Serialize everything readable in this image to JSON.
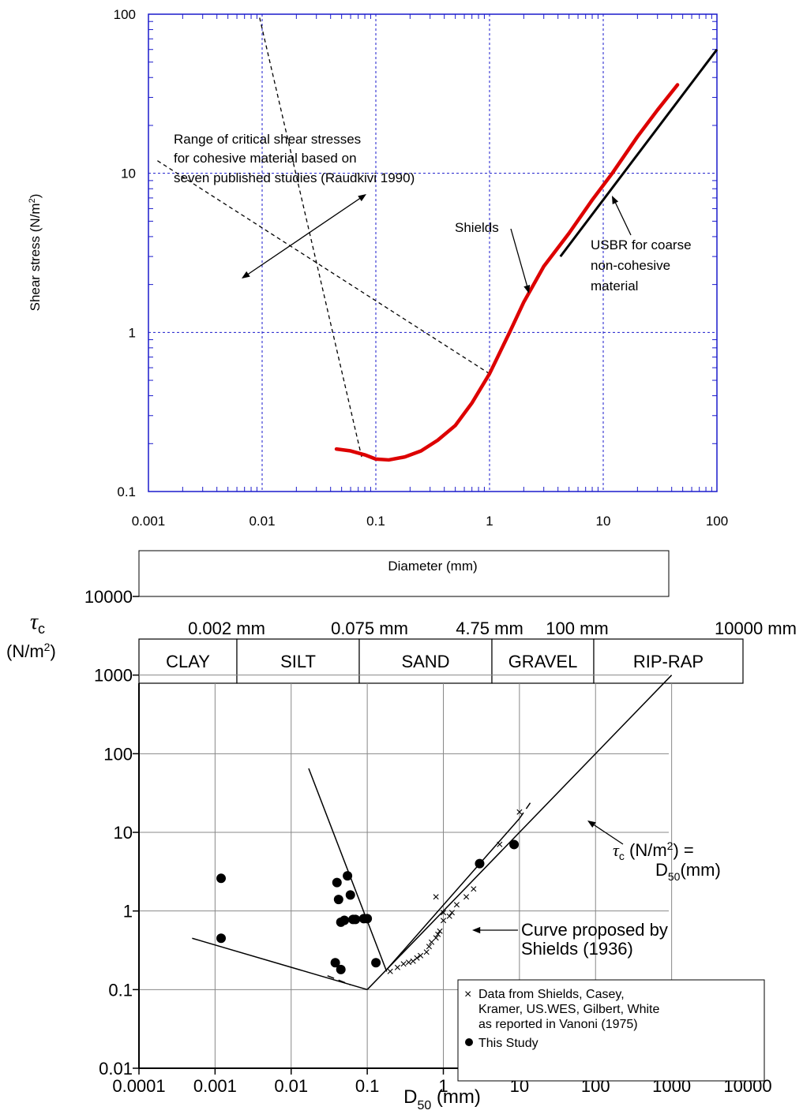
{
  "chart_data": [
    {
      "type": "line",
      "xlabel": "Diameter (mm)",
      "ylabel_main": "Shear stress (N/m",
      "ylabel_sup": "2",
      "ylabel_tail": ")",
      "x_scale": "log",
      "y_scale": "log",
      "xlim": [
        0.001,
        100
      ],
      "ylim": [
        0.1,
        100
      ],
      "x_ticks": [
        0.001,
        0.01,
        0.1,
        1,
        10,
        100
      ],
      "x_tick_labels": [
        "0.001",
        "0.01",
        "0.1",
        "1",
        "10",
        "100"
      ],
      "y_ticks": [
        0.1,
        1,
        10,
        100
      ],
      "y_tick_labels": [
        "0.1",
        "1",
        "10",
        "100"
      ],
      "grid": true,
      "grid_color": "#1a1acc",
      "series": [
        {
          "name": "Shields",
          "color": "#dd0000",
          "x": [
            0.045,
            0.06,
            0.08,
            0.1,
            0.13,
            0.18,
            0.25,
            0.35,
            0.5,
            0.7,
            1.0,
            1.5,
            2.0,
            3.0,
            5.0,
            8.0,
            12.0,
            20.0,
            30.0,
            45.0
          ],
          "y": [
            0.185,
            0.18,
            0.17,
            0.16,
            0.158,
            0.165,
            0.18,
            0.21,
            0.26,
            0.36,
            0.55,
            1.0,
            1.55,
            2.6,
            4.2,
            6.8,
            10.0,
            17.0,
            25.0,
            36.0
          ]
        },
        {
          "name": "USBR for coarse non-cohesive material",
          "color": "#000000",
          "x": [
            4.2,
            100
          ],
          "y": [
            3.0,
            60.0
          ]
        }
      ],
      "cohesive_range_lines": [
        {
          "x": [
            0.0012,
            1.0
          ],
          "y": [
            12.0,
            0.55
          ]
        },
        {
          "x": [
            0.0095,
            0.075
          ],
          "y": [
            95.0,
            0.165
          ]
        }
      ],
      "annotations": {
        "range_text": [
          "Range of critical shear stresses",
          "for cohesive material based on",
          "seven published studies (Raudkivi 1990)"
        ],
        "shields": "Shields",
        "usbr": [
          "USBR for coarse",
          "non-cohesive",
          "material"
        ]
      }
    },
    {
      "type": "scatter",
      "xlabel": "D",
      "xlabel_sub": "50",
      "xlabel_tail": " (mm)",
      "ylabel_symbol": "τ",
      "ylabel_symbol_sub": "c",
      "ylabel_unit": "(N/m",
      "ylabel_unit_sup": "2",
      "ylabel_unit_tail": ")",
      "x_scale": "log",
      "y_scale": "log",
      "xlim": [
        0.0001,
        10000
      ],
      "ylim": [
        0.01,
        10000
      ],
      "x_tick_labels": [
        "0.0001",
        "0.001",
        "0.01",
        "0.1",
        "1",
        "10",
        "100",
        "1000",
        "10000"
      ],
      "y_tick_labels": [
        "0.01",
        "0.1",
        "1",
        "10",
        "100",
        "1000",
        "10000"
      ],
      "grid": true,
      "size_classes": [
        {
          "label": "CLAY",
          "from": 0.0001,
          "to": 0.002
        },
        {
          "label": "SILT",
          "from": 0.002,
          "to": 0.075
        },
        {
          "label": "SAND",
          "from": 0.075,
          "to": 4.75
        },
        {
          "label": "GRAVEL",
          "from": 4.75,
          "to": 100
        },
        {
          "label": "RIP-RAP",
          "from": 100,
          "to": 10000
        }
      ],
      "boundary_labels": [
        "0.002 mm",
        "0.075 mm",
        "4.75 mm",
        "100 mm",
        "10000 mm"
      ],
      "lines": {
        "silt_clay_upper": {
          "x": [
            0.0005,
            0.1
          ],
          "y": [
            0.45,
            0.1
          ]
        },
        "silt_lower_dash": {
          "x": [
            0.03,
            0.06
          ],
          "y": [
            0.15,
            0.115
          ]
        },
        "cohesive_steep": {
          "x": [
            0.017,
            0.18
          ],
          "y": [
            65.0,
            0.17
          ]
        },
        "shields_lower": {
          "x": [
            0.1,
            1000
          ],
          "y": [
            0.1,
            1000
          ]
        },
        "shields_upper": {
          "x": [
            0.18,
            10
          ],
          "y": [
            0.18,
            15
          ]
        },
        "shields_dash": {
          "x": [
            10,
            14
          ],
          "y": [
            15,
            24
          ]
        }
      },
      "series": [
        {
          "name": "Data from Shields, Casey, Kramer, US.WES, Gilbert, White as reported in Vanoni (1975)",
          "marker": "x",
          "x": [
            0.2,
            0.25,
            0.3,
            0.35,
            0.4,
            0.45,
            0.5,
            0.6,
            0.65,
            0.7,
            0.8,
            0.85,
            0.9,
            1.0,
            1.2,
            1.3,
            1.5,
            2.0,
            2.5,
            5.5,
            10.0,
            0.8,
            1.0
          ],
          "y": [
            0.17,
            0.19,
            0.21,
            0.22,
            0.23,
            0.25,
            0.27,
            0.3,
            0.35,
            0.4,
            0.45,
            0.5,
            0.55,
            0.75,
            0.85,
            0.95,
            1.2,
            1.5,
            1.9,
            7.0,
            18.0,
            1.5,
            0.95
          ]
        },
        {
          "name": "This Study",
          "marker": "circle",
          "x": [
            0.0012,
            0.0012,
            0.04,
            0.042,
            0.045,
            0.05,
            0.055,
            0.06,
            0.065,
            0.07,
            0.09,
            0.1,
            0.13,
            3.0,
            8.5,
            0.038,
            0.045
          ],
          "y": [
            2.6,
            0.45,
            2.3,
            1.4,
            0.72,
            0.76,
            2.8,
            1.6,
            0.78,
            0.78,
            0.8,
            0.8,
            0.22,
            4.0,
            7.0,
            0.22,
            0.18
          ]
        }
      ],
      "annotations": {
        "tau_eq_line1": "τ",
        "tau_eq_sub": "c",
        "tau_eq_line1_tail": " (N/m",
        "tau_eq_sup": "2",
        "tau_eq_line1_end": ") =",
        "tau_eq_line2": "D",
        "tau_eq_line2_sub": "50",
        "tau_eq_line2_tail": "(mm)",
        "shields_line1": "Curve proposed by",
        "shields_line2": "Shields (1936)"
      },
      "legend": {
        "placement": "bottom-right",
        "x_entry_symbol": "×",
        "x_entry": [
          "Data from Shields, Casey,",
          "Kramer, US.WES, Gilbert, White",
          "as reported in Vanoni (1975)"
        ],
        "dot_entry": "This Study"
      }
    }
  ]
}
